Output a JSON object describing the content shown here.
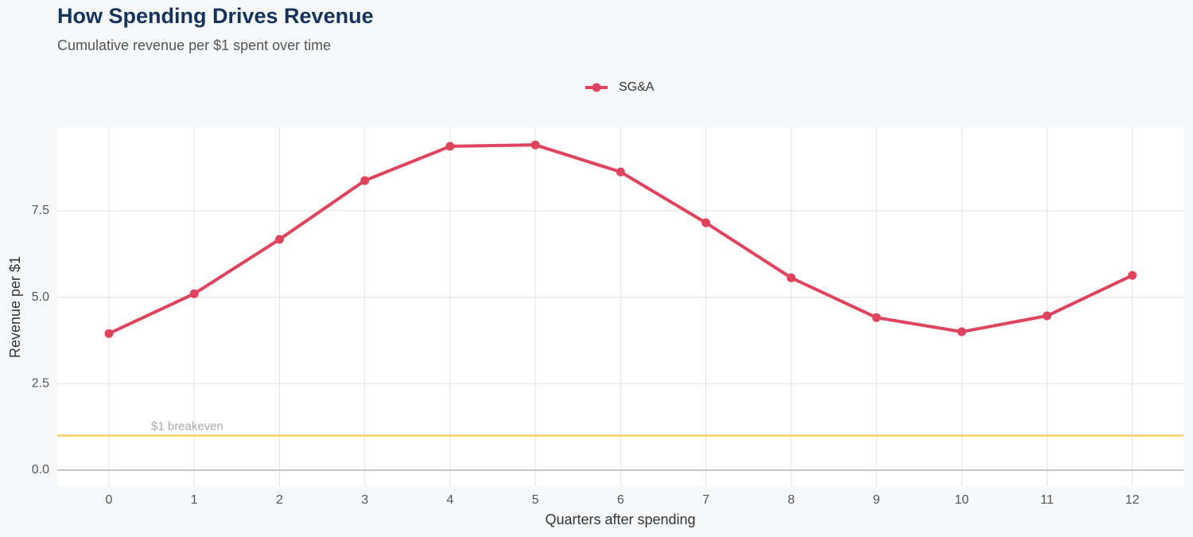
{
  "chart_data": {
    "type": "line",
    "title": "How Spending Drives Revenue",
    "subtitle": "Cumulative revenue per $1 spent over time",
    "x_label": "Quarters after spending",
    "y_label": "Revenue per $1",
    "x": [
      0,
      1,
      2,
      3,
      4,
      5,
      6,
      7,
      8,
      9,
      10,
      11,
      12
    ],
    "series": [
      {
        "name": "SG&A",
        "color": "#e0435e",
        "values": [
          3.95,
          5.1,
          6.67,
          8.37,
          9.36,
          9.4,
          8.62,
          7.15,
          5.56,
          4.41,
          4.0,
          4.46,
          5.63
        ]
      }
    ],
    "xlim": [
      -0.606,
      12.6
    ],
    "xticks": [
      0,
      1,
      2,
      3,
      4,
      5,
      6,
      7,
      8,
      9,
      10,
      11,
      12
    ],
    "ylim": [
      -0.46,
      9.91
    ],
    "yticks": [
      {
        "value": 0,
        "label": "0.0"
      },
      2.5,
      {
        "value": 5,
        "label": "5.0"
      },
      7.5
    ],
    "reference_line": {
      "value": 1,
      "label": "$1 breakeven",
      "color": "#f5cf6e"
    },
    "grid": true,
    "legend": "top"
  }
}
